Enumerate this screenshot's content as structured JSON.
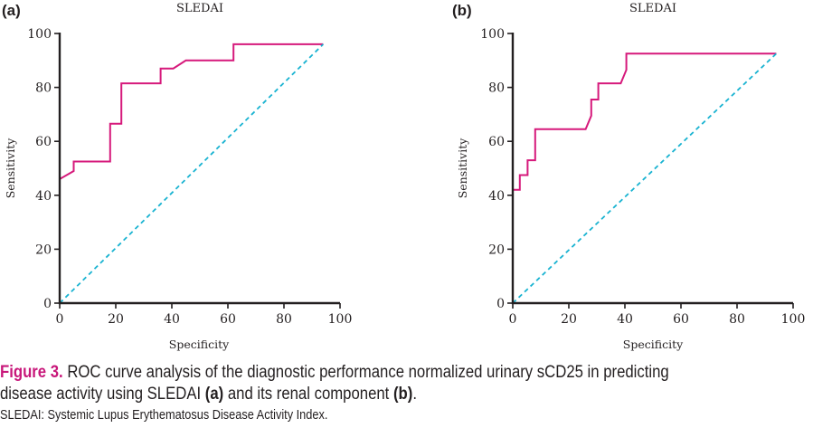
{
  "colors": {
    "roc_curve": "#d6197b",
    "reference_line": "#19b3d1",
    "figure_label": "#c8177a",
    "text": "#231f20"
  },
  "chart_data": [
    {
      "type": "line",
      "panel_label": "(a)",
      "title": "SLEDAI",
      "xlabel": "Specificity",
      "ylabel": "Sensitivity",
      "xlim": [
        0,
        100
      ],
      "ylim": [
        0,
        100
      ],
      "x_ticks": [
        "0",
        "20",
        "40",
        "60",
        "80",
        "100"
      ],
      "y_ticks": [
        "0",
        "20",
        "40",
        "60",
        "80",
        "100"
      ],
      "grid": false,
      "series": [
        {
          "name": "ROC curve",
          "style": "solid",
          "x": [
            0,
            0,
            5,
            5,
            18,
            18,
            22,
            22,
            36,
            36,
            40.5,
            45,
            62,
            62,
            94
          ],
          "y": [
            0,
            46,
            49,
            52.5,
            52.5,
            66.5,
            66.5,
            81.5,
            81.5,
            87,
            87,
            90,
            90,
            96,
            96
          ]
        },
        {
          "name": "Reference line",
          "style": "dashed",
          "x": [
            0,
            94
          ],
          "y": [
            0,
            96
          ]
        }
      ]
    },
    {
      "type": "line",
      "panel_label": "(b)",
      "title": "SLEDAI",
      "xlabel": "Specificity",
      "ylabel": "Sensitivity",
      "xlim": [
        0,
        100
      ],
      "ylim": [
        0,
        100
      ],
      "x_ticks": [
        "0",
        "20",
        "40",
        "60",
        "80",
        "100"
      ],
      "y_ticks": [
        "0",
        "20",
        "40",
        "60",
        "80",
        "100"
      ],
      "grid": false,
      "series": [
        {
          "name": "ROC curve",
          "style": "solid",
          "x": [
            0,
            0,
            2.5,
            2.5,
            5.3,
            5.3,
            8,
            8,
            26,
            28,
            28,
            30.5,
            30.5,
            38.5,
            40.5,
            40.5,
            94
          ],
          "y": [
            0,
            42,
            42,
            47.5,
            47.5,
            53,
            53,
            64.5,
            64.5,
            69.5,
            75.5,
            75.5,
            81.5,
            81.5,
            86.5,
            92.5,
            92.5
          ]
        },
        {
          "name": "Reference line",
          "style": "dashed",
          "x": [
            0,
            94
          ],
          "y": [
            0,
            92.5
          ]
        }
      ]
    }
  ],
  "caption": {
    "figure_label": "Figure 3.",
    "line1_text": " ROC curve analysis of the diagnostic performance normalized urinary sCD25 in predicting",
    "line2_pre": "disease activity using SLEDAI ",
    "line2_a": "(a)",
    "line2_mid": " and its renal component ",
    "line2_b": "(b)",
    "line2_end": ".",
    "abbreviation": "SLEDAI: Systemic Lupus Erythematosus Disease Activity Index."
  }
}
